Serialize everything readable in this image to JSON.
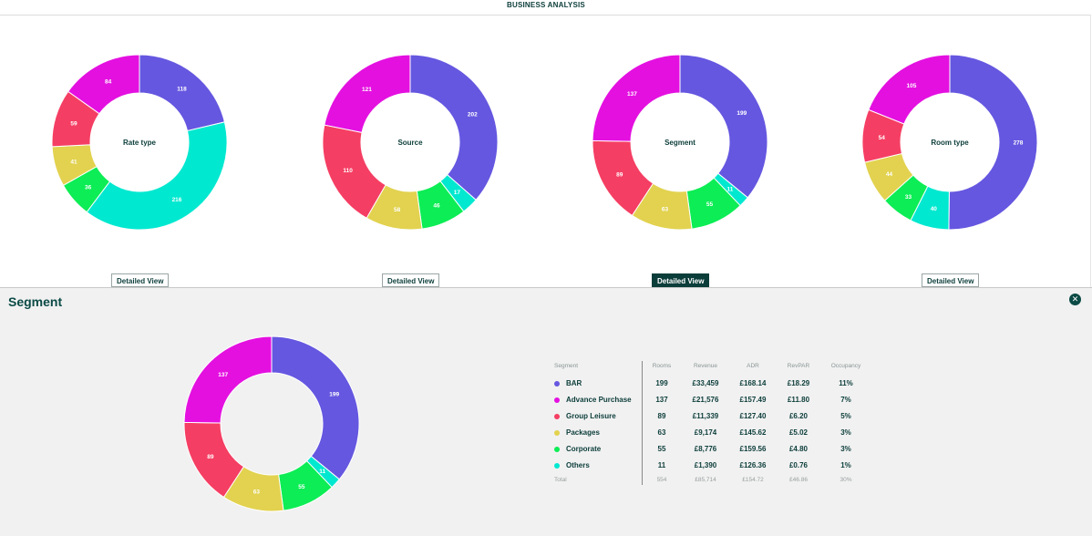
{
  "header": {
    "title": "BUSINESS ANALYSIS"
  },
  "colors": {
    "purple": "#6557e0",
    "magenta": "#e410e0",
    "red": "#f53e63",
    "yellow": "#e2d24f",
    "green": "#0ded55",
    "cyan": "#00e8d0",
    "brand": "#0b3d3a"
  },
  "charts": [
    {
      "center_label": "Rate type",
      "button_label": "Detailed View",
      "button_active": false,
      "segments": [
        {
          "value": 118,
          "color": "#6557e0"
        },
        {
          "value": 216,
          "color": "#00e8d0"
        },
        {
          "value": 36,
          "color": "#0ded55"
        },
        {
          "value": 41,
          "color": "#e2d24f"
        },
        {
          "value": 59,
          "color": "#f53e63"
        },
        {
          "value": 84,
          "color": "#e410e0"
        }
      ]
    },
    {
      "center_label": "Source",
      "button_label": "Detailed View",
      "button_active": false,
      "segments": [
        {
          "value": 202,
          "color": "#6557e0"
        },
        {
          "value": 17,
          "color": "#00e8d0"
        },
        {
          "value": 46,
          "color": "#0ded55"
        },
        {
          "value": 58,
          "color": "#e2d24f"
        },
        {
          "value": 110,
          "color": "#f53e63"
        },
        {
          "value": 121,
          "color": "#e410e0"
        }
      ]
    },
    {
      "center_label": "Segment",
      "button_label": "Detailed View",
      "button_active": true,
      "segments": [
        {
          "value": 199,
          "color": "#6557e0"
        },
        {
          "value": 11,
          "color": "#00e8d0"
        },
        {
          "value": 55,
          "color": "#0ded55"
        },
        {
          "value": 63,
          "color": "#e2d24f"
        },
        {
          "value": 89,
          "color": "#f53e63"
        },
        {
          "value": 137,
          "color": "#e410e0"
        }
      ]
    },
    {
      "center_label": "Room type",
      "button_label": "Detailed View",
      "button_active": false,
      "segments": [
        {
          "value": 278,
          "color": "#6557e0"
        },
        {
          "value": 40,
          "color": "#00e8d0"
        },
        {
          "value": 33,
          "color": "#0ded55"
        },
        {
          "value": 44,
          "color": "#e2d24f"
        },
        {
          "value": 54,
          "color": "#f53e63"
        },
        {
          "value": 105,
          "color": "#e410e0"
        }
      ]
    }
  ],
  "detail": {
    "title": "Segment",
    "close_icon": "close-icon",
    "chart_segments": [
      {
        "value": 199,
        "color": "#6557e0"
      },
      {
        "value": 11,
        "color": "#00e8d0"
      },
      {
        "value": 55,
        "color": "#0ded55"
      },
      {
        "value": 63,
        "color": "#e2d24f"
      },
      {
        "value": 89,
        "color": "#f53e63"
      },
      {
        "value": 137,
        "color": "#e410e0"
      }
    ],
    "table": {
      "headers": [
        "Segment",
        "Rooms",
        "Revenue",
        "ADR",
        "RevPAR",
        "Occupancy"
      ],
      "rows": [
        {
          "name": "BAR",
          "color": "#6557e0",
          "rooms": "199",
          "revenue": "£33,459",
          "adr": "£168.14",
          "revpar": "£18.29",
          "occupancy": "11%"
        },
        {
          "name": "Advance Purchase",
          "color": "#e410e0",
          "rooms": "137",
          "revenue": "£21,576",
          "adr": "£157.49",
          "revpar": "£11.80",
          "occupancy": "7%"
        },
        {
          "name": "Group Leisure",
          "color": "#f53e63",
          "rooms": "89",
          "revenue": "£11,339",
          "adr": "£127.40",
          "revpar": "£6.20",
          "occupancy": "5%"
        },
        {
          "name": "Packages",
          "color": "#e2d24f",
          "rooms": "63",
          "revenue": "£9,174",
          "adr": "£145.62",
          "revpar": "£5.02",
          "occupancy": "3%"
        },
        {
          "name": "Corporate",
          "color": "#0ded55",
          "rooms": "55",
          "revenue": "£8,776",
          "adr": "£159.56",
          "revpar": "£4.80",
          "occupancy": "3%"
        },
        {
          "name": "Others",
          "color": "#00e8d0",
          "rooms": "11",
          "revenue": "£1,390",
          "adr": "£126.36",
          "revpar": "£0.76",
          "occupancy": "1%"
        }
      ],
      "total": {
        "name": "Total",
        "rooms": "554",
        "revenue": "£85,714",
        "adr": "£154.72",
        "revpar": "£46.86",
        "occupancy": "30%"
      }
    }
  }
}
